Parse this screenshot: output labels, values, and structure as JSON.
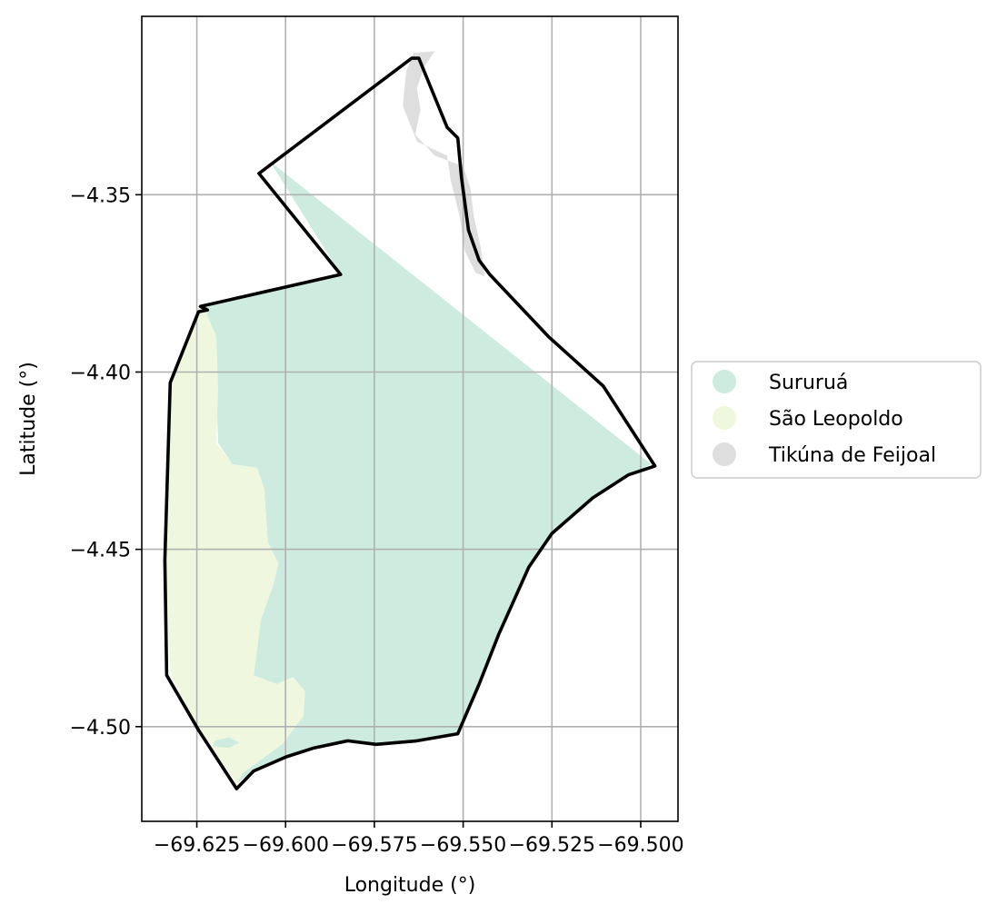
{
  "chart_data": {
    "type": "choropleth-map",
    "xlabel": "Longitude (°)",
    "ylabel": "Latitude (°)",
    "xlim": [
      -69.6405,
      -69.4895
    ],
    "ylim": [
      -4.5267,
      -4.2997
    ],
    "grid": true,
    "legend_placement": "center-right-outside",
    "x_ticks": [
      {
        "value": -69.625,
        "label": "−69.625"
      },
      {
        "value": -69.6,
        "label": "−69.600"
      },
      {
        "value": -69.575,
        "label": "−69.575"
      },
      {
        "value": -69.55,
        "label": "−69.550"
      },
      {
        "value": -69.525,
        "label": "−69.525"
      },
      {
        "value": -69.5,
        "label": "−69.500"
      }
    ],
    "y_ticks": [
      {
        "value": -4.35,
        "label": "−4.35"
      },
      {
        "value": -4.4,
        "label": "−4.40"
      },
      {
        "value": -4.45,
        "label": "−4.45"
      },
      {
        "value": -4.5,
        "label": "−4.50"
      }
    ],
    "categories": [
      {
        "name": "Sururuá",
        "color": "#ceebdf"
      },
      {
        "name": "São Leopoldo",
        "color": "#eff8de"
      },
      {
        "name": "Tikúna de Feijoal",
        "color": "#dedede"
      }
    ],
    "regions": [
      {
        "category": "Sururuá",
        "polygon": [
          [
            -69.6045,
            -4.3405
          ],
          [
            -69.497,
            -4.426
          ],
          [
            -69.5035,
            -4.429
          ],
          [
            -69.5135,
            -4.4355
          ],
          [
            -69.525,
            -4.4455
          ],
          [
            -69.5315,
            -4.455
          ],
          [
            -69.54,
            -4.474
          ],
          [
            -69.5455,
            -4.488
          ],
          [
            -69.5515,
            -4.502
          ],
          [
            -69.563,
            -4.504
          ],
          [
            -69.5745,
            -4.505
          ],
          [
            -69.5825,
            -4.504
          ],
          [
            -69.592,
            -4.506
          ],
          [
            -69.5998,
            -4.5085
          ],
          [
            -69.609,
            -4.5125
          ],
          [
            -69.6138,
            -4.516
          ],
          [
            -69.612,
            -4.513
          ],
          [
            -69.601,
            -4.505
          ],
          [
            -69.595,
            -4.497
          ],
          [
            -69.5945,
            -4.49
          ],
          [
            -69.598,
            -4.486
          ],
          [
            -69.6025,
            -4.488
          ],
          [
            -69.609,
            -4.4855
          ],
          [
            -69.607,
            -4.47
          ],
          [
            -69.6035,
            -4.46
          ],
          [
            -69.602,
            -4.454
          ],
          [
            -69.605,
            -4.448
          ],
          [
            -69.606,
            -4.433
          ],
          [
            -69.608,
            -4.427
          ],
          [
            -69.615,
            -4.426
          ],
          [
            -69.619,
            -4.42
          ],
          [
            -69.6195,
            -4.405
          ],
          [
            -69.6205,
            -4.395
          ],
          [
            -69.6235,
            -4.386
          ],
          [
            -69.622,
            -4.383
          ],
          [
            -69.624,
            -4.381
          ],
          [
            -69.5845,
            -4.3725
          ],
          [
            -69.6045,
            -4.3405
          ]
        ]
      },
      {
        "category": "São Leopoldo",
        "polygon": [
          [
            -69.6225,
            -4.383
          ],
          [
            -69.6195,
            -4.39
          ],
          [
            -69.619,
            -4.405
          ],
          [
            -69.6195,
            -4.42
          ],
          [
            -69.615,
            -4.426
          ],
          [
            -69.608,
            -4.427
          ],
          [
            -69.606,
            -4.433
          ],
          [
            -69.605,
            -4.448
          ],
          [
            -69.602,
            -4.454
          ],
          [
            -69.6035,
            -4.46
          ],
          [
            -69.607,
            -4.47
          ],
          [
            -69.609,
            -4.4855
          ],
          [
            -69.6025,
            -4.488
          ],
          [
            -69.598,
            -4.486
          ],
          [
            -69.5945,
            -4.49
          ],
          [
            -69.595,
            -4.497
          ],
          [
            -69.601,
            -4.505
          ],
          [
            -69.612,
            -4.513
          ],
          [
            -69.6138,
            -4.516
          ],
          [
            -69.6245,
            -4.501
          ],
          [
            -69.6325,
            -4.485
          ],
          [
            -69.634,
            -4.453
          ],
          [
            -69.6325,
            -4.403
          ],
          [
            -69.624,
            -4.381
          ]
        ]
      },
      {
        "category": "Sururuá",
        "polygon": [
          [
            -69.62,
            -4.504
          ],
          [
            -69.616,
            -4.503
          ],
          [
            -69.613,
            -4.5045
          ],
          [
            -69.616,
            -4.506
          ],
          [
            -69.6205,
            -4.5055
          ]
        ]
      },
      {
        "category": "Tikúna de Feijoal",
        "polygon": [
          [
            -69.558,
            -4.3095
          ],
          [
            -69.561,
            -4.314
          ],
          [
            -69.563,
            -4.32
          ],
          [
            -69.562,
            -4.326
          ],
          [
            -69.5635,
            -4.333
          ],
          [
            -69.558,
            -4.339
          ],
          [
            -69.55,
            -4.342
          ],
          [
            -69.548,
            -4.348
          ],
          [
            -69.547,
            -4.356
          ],
          [
            -69.545,
            -4.365
          ],
          [
            -69.544,
            -4.373
          ],
          [
            -69.5465,
            -4.372
          ],
          [
            -69.5495,
            -4.366
          ],
          [
            -69.551,
            -4.356
          ],
          [
            -69.5535,
            -4.346
          ],
          [
            -69.5545,
            -4.339
          ],
          [
            -69.563,
            -4.335
          ],
          [
            -69.567,
            -4.325
          ],
          [
            -69.566,
            -4.315
          ],
          [
            -69.564,
            -4.31
          ]
        ]
      }
    ],
    "boundary": [
      [
        -69.5625,
        -4.3115
      ],
      [
        -69.558,
        -4.3225
      ],
      [
        -69.5545,
        -4.331
      ],
      [
        -69.5515,
        -4.334
      ],
      [
        -69.5505,
        -4.345
      ],
      [
        -69.5485,
        -4.36
      ],
      [
        -69.5455,
        -4.3685
      ],
      [
        -69.5425,
        -4.3725
      ],
      [
        -69.526,
        -4.39
      ],
      [
        -69.5105,
        -4.404
      ],
      [
        -69.496,
        -4.4265
      ],
      [
        -69.5035,
        -4.429
      ],
      [
        -69.5135,
        -4.4355
      ],
      [
        -69.525,
        -4.4455
      ],
      [
        -69.5315,
        -4.455
      ],
      [
        -69.54,
        -4.474
      ],
      [
        -69.5455,
        -4.488
      ],
      [
        -69.5515,
        -4.502
      ],
      [
        -69.563,
        -4.504
      ],
      [
        -69.5745,
        -4.505
      ],
      [
        -69.5825,
        -4.504
      ],
      [
        -69.592,
        -4.506
      ],
      [
        -69.5998,
        -4.5085
      ],
      [
        -69.609,
        -4.5125
      ],
      [
        -69.6138,
        -4.5175
      ],
      [
        -69.6245,
        -4.501
      ],
      [
        -69.6335,
        -4.4855
      ],
      [
        -69.634,
        -4.453
      ],
      [
        -69.6325,
        -4.403
      ],
      [
        -69.6245,
        -4.383
      ],
      [
        -69.622,
        -4.3825
      ],
      [
        -69.624,
        -4.3815
      ],
      [
        -69.5845,
        -4.3725
      ],
      [
        -69.6075,
        -4.344
      ],
      [
        -69.5645,
        -4.3115
      ]
    ]
  }
}
